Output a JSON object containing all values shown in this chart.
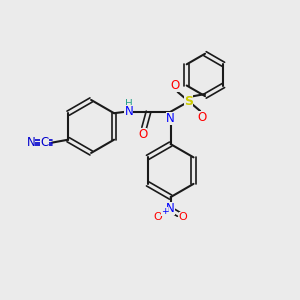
{
  "background_color": "#ebebeb",
  "bond_color": "#1a1a1a",
  "atom_colors": {
    "N": "#0000ff",
    "O": "#ff0000",
    "S": "#cccc00",
    "C": "#1a1a1a",
    "H": "#2aa18a",
    "CN_label": "#0000cd"
  },
  "figsize": [
    3.0,
    3.0
  ],
  "dpi": 100,
  "xlim": [
    0,
    10
  ],
  "ylim": [
    0,
    10
  ]
}
